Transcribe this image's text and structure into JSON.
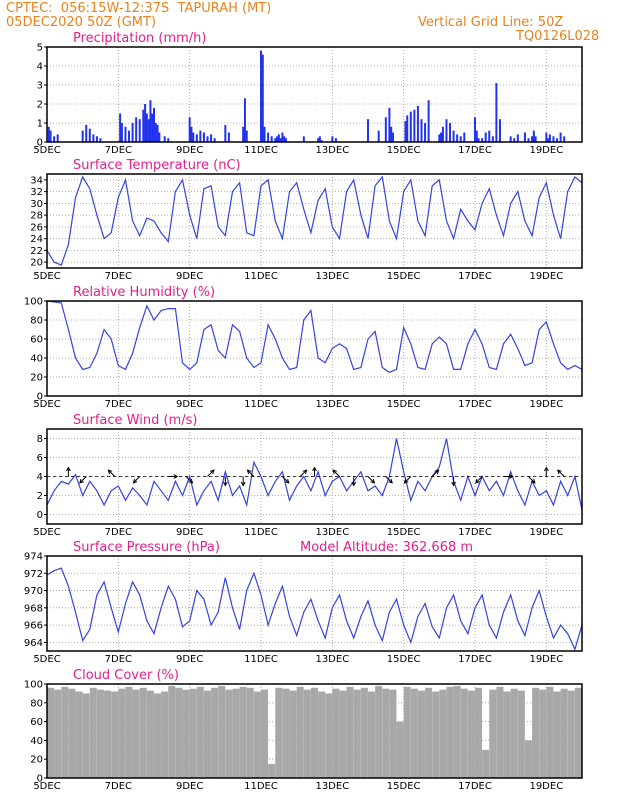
{
  "header": {
    "line1": "CPTEC:  056:15W-12:37S  TAPURAH (MT)",
    "line2": "05DEC2020 50Z (GMT)",
    "grid_note": "Vertical Grid Line: 50Z",
    "run_id": "TQ0126L028",
    "model_altitude": "Model Altitude: 362.668 m"
  },
  "colors": {
    "header": "#e8821e",
    "title": "#e0208c",
    "line": "#3344dd",
    "bar": "#2233ee",
    "cloud": "#a8a8a8",
    "grid": "#999999"
  },
  "x_axis": {
    "unit": "days from 05DEC2020",
    "range": [
      0,
      15
    ],
    "ticks": [
      0,
      2,
      4,
      6,
      8,
      10,
      12,
      14
    ],
    "tick_labels": [
      "5DEC",
      "7DEC",
      "9DEC",
      "11DEC",
      "13DEC",
      "15DEC",
      "17DEC",
      "19DEC"
    ]
  },
  "chart_data": [
    {
      "type": "bar",
      "title": "Precipitation (mm/h)",
      "ylim": [
        0,
        5
      ],
      "yticks": [
        0,
        1,
        2,
        3,
        4,
        5
      ],
      "x": [
        0.05,
        0.1,
        0.2,
        0.3,
        1.0,
        1.1,
        1.2,
        1.3,
        1.4,
        1.5,
        2.05,
        2.1,
        2.2,
        2.3,
        2.4,
        2.5,
        2.6,
        2.7,
        2.75,
        2.8,
        2.85,
        2.9,
        2.95,
        3.0,
        3.05,
        3.1,
        3.15,
        3.3,
        3.4,
        4.0,
        4.05,
        4.1,
        4.2,
        4.3,
        4.4,
        4.5,
        4.6,
        4.7,
        5.0,
        5.1,
        5.5,
        5.55,
        5.6,
        6.0,
        6.05,
        6.1,
        6.2,
        6.3,
        6.4,
        6.45,
        6.5,
        6.55,
        6.6,
        6.65,
        6.7,
        7.2,
        7.6,
        7.65,
        7.7,
        8.0,
        8.1,
        9.0,
        9.3,
        9.5,
        9.6,
        9.65,
        9.7,
        10.05,
        10.1,
        10.2,
        10.3,
        10.4,
        10.5,
        10.6,
        10.7,
        11.0,
        11.05,
        11.1,
        11.2,
        11.3,
        11.4,
        11.5,
        11.6,
        11.7,
        12.0,
        12.05,
        12.1,
        12.2,
        12.3,
        12.4,
        12.5,
        12.6,
        12.7,
        13.0,
        13.1,
        13.2,
        13.4,
        13.5,
        13.6,
        13.65,
        13.7,
        14.0,
        14.05,
        14.1,
        14.2,
        14.3,
        14.4,
        14.5
      ],
      "values": [
        0.8,
        0.6,
        0.3,
        0.4,
        0.6,
        0.9,
        0.7,
        0.4,
        0.3,
        0.2,
        1.5,
        1.0,
        0.8,
        0.6,
        1.0,
        1.3,
        1.2,
        1.7,
        2.0,
        1.5,
        1.2,
        2.2,
        1.5,
        1.8,
        1.0,
        0.9,
        0.5,
        0.3,
        0.2,
        1.3,
        0.8,
        0.5,
        0.4,
        0.6,
        0.5,
        0.3,
        0.4,
        0.2,
        0.9,
        0.5,
        0.8,
        2.3,
        0.6,
        4.8,
        4.6,
        0.8,
        0.5,
        0.3,
        0.2,
        0.3,
        0.4,
        0.2,
        0.5,
        0.3,
        0.2,
        0.3,
        0.2,
        0.3,
        0.1,
        0.3,
        0.2,
        1.2,
        0.6,
        1.3,
        1.8,
        0.8,
        0.5,
        1.1,
        1.4,
        1.6,
        1.7,
        1.9,
        1.2,
        1.0,
        2.2,
        0.4,
        0.5,
        0.8,
        1.2,
        1.0,
        0.6,
        0.4,
        0.3,
        0.5,
        1.3,
        0.6,
        0.2,
        0.2,
        0.5,
        0.6,
        0.3,
        3.1,
        1.2,
        0.3,
        0.2,
        0.4,
        0.5,
        0.2,
        0.3,
        0.6,
        0.3,
        0.5,
        0.2,
        0.4,
        0.3,
        0.2,
        0.5,
        0.3
      ]
    },
    {
      "type": "line",
      "title": "Surface Temperature (nC)",
      "ylim": [
        19,
        35
      ],
      "yticks": [
        20,
        22,
        24,
        26,
        28,
        30,
        32,
        34
      ],
      "x": [
        0,
        0.2,
        0.4,
        0.6,
        0.8,
        1.0,
        1.2,
        1.4,
        1.6,
        1.8,
        2.0,
        2.2,
        2.4,
        2.6,
        2.8,
        3.0,
        3.2,
        3.4,
        3.6,
        3.8,
        4.0,
        4.2,
        4.4,
        4.6,
        4.8,
        5.0,
        5.2,
        5.4,
        5.6,
        5.8,
        6.0,
        6.2,
        6.4,
        6.6,
        6.8,
        7.0,
        7.2,
        7.4,
        7.6,
        7.8,
        8.0,
        8.2,
        8.4,
        8.6,
        8.8,
        9.0,
        9.2,
        9.4,
        9.6,
        9.8,
        10.0,
        10.2,
        10.4,
        10.6,
        10.8,
        11.0,
        11.2,
        11.4,
        11.6,
        11.8,
        12.0,
        12.2,
        12.4,
        12.6,
        12.8,
        13.0,
        13.2,
        13.4,
        13.6,
        13.8,
        14.0,
        14.2,
        14.4,
        14.6,
        14.8,
        15.0
      ],
      "values": [
        22.0,
        20.0,
        19.5,
        23.0,
        31.0,
        34.5,
        32.5,
        28.0,
        24.0,
        25.0,
        31.0,
        34.0,
        27.0,
        24.5,
        27.5,
        27.0,
        25.0,
        23.5,
        32.0,
        34.0,
        28.0,
        24.0,
        32.5,
        33.0,
        26.0,
        24.5,
        32.0,
        33.5,
        25.0,
        24.5,
        33.0,
        34.0,
        27.0,
        24.0,
        32.0,
        33.5,
        29.0,
        25.0,
        30.5,
        32.5,
        26.0,
        24.0,
        32.0,
        34.0,
        28.0,
        24.0,
        33.0,
        34.5,
        27.0,
        24.0,
        32.0,
        34.0,
        27.0,
        24.5,
        33.0,
        34.0,
        27.0,
        24.0,
        29.0,
        27.0,
        25.5,
        30.0,
        32.5,
        28.0,
        24.5,
        30.0,
        32.0,
        27.0,
        24.5,
        31.0,
        33.5,
        28.0,
        24.0,
        32.0,
        34.5,
        33.5
      ]
    },
    {
      "type": "line",
      "title": "Relative Humidity (%)",
      "ylim": [
        0,
        100
      ],
      "yticks": [
        0,
        20,
        40,
        60,
        80,
        100
      ],
      "x": [
        0,
        0.2,
        0.4,
        0.6,
        0.8,
        1.0,
        1.2,
        1.4,
        1.6,
        1.8,
        2.0,
        2.2,
        2.4,
        2.6,
        2.8,
        3.0,
        3.2,
        3.4,
        3.6,
        3.8,
        4.0,
        4.2,
        4.4,
        4.6,
        4.8,
        5.0,
        5.2,
        5.4,
        5.6,
        5.8,
        6.0,
        6.2,
        6.4,
        6.6,
        6.8,
        7.0,
        7.2,
        7.4,
        7.6,
        7.8,
        8.0,
        8.2,
        8.4,
        8.6,
        8.8,
        9.0,
        9.2,
        9.4,
        9.6,
        9.8,
        10.0,
        10.2,
        10.4,
        10.6,
        10.8,
        11.0,
        11.2,
        11.4,
        11.6,
        11.8,
        12.0,
        12.2,
        12.4,
        12.6,
        12.8,
        13.0,
        13.2,
        13.4,
        13.6,
        13.8,
        14.0,
        14.2,
        14.4,
        14.6,
        14.8,
        15.0
      ],
      "values": [
        100,
        99,
        98,
        70,
        40,
        28,
        30,
        45,
        70,
        60,
        32,
        28,
        45,
        72,
        95,
        80,
        90,
        92,
        92,
        35,
        28,
        35,
        70,
        75,
        48,
        40,
        75,
        68,
        40,
        30,
        35,
        75,
        60,
        40,
        28,
        30,
        80,
        90,
        40,
        35,
        50,
        55,
        50,
        28,
        30,
        60,
        68,
        30,
        25,
        28,
        72,
        55,
        30,
        28,
        55,
        62,
        55,
        28,
        28,
        55,
        70,
        55,
        30,
        28,
        55,
        65,
        50,
        32,
        35,
        70,
        78,
        55,
        35,
        28,
        32,
        28
      ]
    },
    {
      "type": "line",
      "title": "Surface Wind (m/s)",
      "ylim": [
        -1,
        9
      ],
      "yticks": [
        0,
        2,
        4,
        6,
        8
      ],
      "x": [
        0,
        0.2,
        0.4,
        0.6,
        0.8,
        1.0,
        1.2,
        1.4,
        1.6,
        1.8,
        2.0,
        2.2,
        2.4,
        2.6,
        2.8,
        3.0,
        3.2,
        3.4,
        3.6,
        3.8,
        4.0,
        4.2,
        4.4,
        4.6,
        4.8,
        5.0,
        5.2,
        5.4,
        5.6,
        5.8,
        6.0,
        6.2,
        6.4,
        6.6,
        6.8,
        7.0,
        7.2,
        7.4,
        7.6,
        7.8,
        8.0,
        8.2,
        8.4,
        8.6,
        8.8,
        9.0,
        9.2,
        9.4,
        9.6,
        9.8,
        10.0,
        10.2,
        10.4,
        10.6,
        10.8,
        11.0,
        11.2,
        11.4,
        11.6,
        11.8,
        12.0,
        12.2,
        12.4,
        12.6,
        12.8,
        13.0,
        13.2,
        13.4,
        13.6,
        13.8,
        14.0,
        14.2,
        14.4,
        14.6,
        14.8,
        15.0
      ],
      "values": [
        1.0,
        2.5,
        3.5,
        3.2,
        4.2,
        2.0,
        3.5,
        2.5,
        1.0,
        2.5,
        3.0,
        1.5,
        2.8,
        2.0,
        1.0,
        3.5,
        2.5,
        1.5,
        3.5,
        2.0,
        4.0,
        1.0,
        2.5,
        3.5,
        1.5,
        4.5,
        2.0,
        3.0,
        1.0,
        5.5,
        4.0,
        2.0,
        3.5,
        4.5,
        1.5,
        3.0,
        4.0,
        2.5,
        4.5,
        2.0,
        3.5,
        4.0,
        2.5,
        3.5,
        4.5,
        2.5,
        3.0,
        2.0,
        4.0,
        8.0,
        4.5,
        1.5,
        3.5,
        2.5,
        4.0,
        5.0,
        8.0,
        3.5,
        1.5,
        4.0,
        2.0,
        4.0,
        2.5,
        3.5,
        2.0,
        4.5,
        2.5,
        1.0,
        3.5,
        2.0,
        2.5,
        1.0,
        3.5,
        2.0,
        4.0,
        0.5
      ]
    },
    {
      "type": "line",
      "title": "Surface Pressure (hPa)",
      "ylim": [
        963,
        974
      ],
      "yticks": [
        964,
        966,
        968,
        970,
        972,
        974
      ],
      "x": [
        0,
        0.2,
        0.4,
        0.6,
        0.8,
        1.0,
        1.2,
        1.4,
        1.6,
        1.8,
        2.0,
        2.2,
        2.4,
        2.6,
        2.8,
        3.0,
        3.2,
        3.4,
        3.6,
        3.8,
        4.0,
        4.2,
        4.4,
        4.6,
        4.8,
        5.0,
        5.2,
        5.4,
        5.6,
        5.8,
        6.0,
        6.2,
        6.4,
        6.6,
        6.8,
        7.0,
        7.2,
        7.4,
        7.6,
        7.8,
        8.0,
        8.2,
        8.4,
        8.6,
        8.8,
        9.0,
        9.2,
        9.4,
        9.6,
        9.8,
        10.0,
        10.2,
        10.4,
        10.6,
        10.8,
        11.0,
        11.2,
        11.4,
        11.6,
        11.8,
        12.0,
        12.2,
        12.4,
        12.6,
        12.8,
        13.0,
        13.2,
        13.4,
        13.6,
        13.8,
        14.0,
        14.2,
        14.4,
        14.6,
        14.8,
        15.0
      ],
      "values": [
        971.8,
        972.3,
        972.6,
        970.5,
        967.5,
        964.2,
        965.5,
        969.5,
        971.0,
        968.0,
        965.2,
        968.5,
        971.0,
        969.5,
        966.5,
        965.0,
        968.0,
        970.5,
        969.0,
        965.8,
        966.5,
        970.0,
        969.0,
        966.0,
        967.5,
        971.5,
        968.0,
        965.5,
        970.0,
        972.0,
        969.5,
        966.0,
        968.5,
        970.5,
        967.0,
        964.8,
        967.5,
        969.0,
        966.5,
        964.5,
        968.0,
        969.5,
        966.5,
        964.5,
        967.0,
        968.8,
        966.0,
        964.2,
        967.5,
        969.0,
        966.0,
        964.0,
        967.0,
        968.5,
        965.8,
        964.5,
        968.0,
        969.5,
        966.5,
        965.0,
        968.0,
        969.5,
        966.0,
        964.5,
        967.5,
        969.5,
        966.5,
        964.8,
        968.0,
        970.0,
        967.0,
        964.5,
        966.0,
        965.0,
        963.2,
        966.0
      ]
    },
    {
      "type": "area",
      "title": "Cloud Cover (%)",
      "ylim": [
        0,
        100
      ],
      "yticks": [
        0,
        20,
        40,
        60,
        80,
        100
      ],
      "x": [
        0,
        0.2,
        0.4,
        0.6,
        0.8,
        1.0,
        1.2,
        1.4,
        1.6,
        1.8,
        2.0,
        2.2,
        2.4,
        2.6,
        2.8,
        3.0,
        3.2,
        3.4,
        3.6,
        3.8,
        4.0,
        4.2,
        4.4,
        4.6,
        4.8,
        5.0,
        5.2,
        5.4,
        5.6,
        5.8,
        6.0,
        6.2,
        6.4,
        6.6,
        6.8,
        7.0,
        7.2,
        7.4,
        7.6,
        7.8,
        8.0,
        8.2,
        8.4,
        8.6,
        8.8,
        9.0,
        9.2,
        9.4,
        9.6,
        9.8,
        10.0,
        10.2,
        10.4,
        10.6,
        10.8,
        11.0,
        11.2,
        11.4,
        11.6,
        11.8,
        12.0,
        12.2,
        12.4,
        12.6,
        12.8,
        13.0,
        13.2,
        13.4,
        13.6,
        13.8,
        14.0,
        14.2,
        14.4,
        14.6,
        14.8,
        15.0
      ],
      "values": [
        96,
        94,
        97,
        95,
        92,
        90,
        96,
        94,
        93,
        92,
        95,
        97,
        94,
        96,
        93,
        90,
        92,
        98,
        96,
        94,
        95,
        97,
        93,
        96,
        98,
        94,
        95,
        97,
        96,
        92,
        94,
        15,
        96,
        95,
        93,
        97,
        94,
        96,
        92,
        90,
        95,
        93,
        97,
        94,
        96,
        92,
        98,
        95,
        94,
        60,
        97,
        95,
        93,
        96,
        92,
        94,
        97,
        98,
        95,
        93,
        96,
        30,
        94,
        97,
        92,
        95,
        93,
        40,
        96,
        94,
        97,
        92,
        95,
        93,
        96,
        84
      ]
    }
  ],
  "wind_barbs": {
    "level": 4,
    "x": [
      0.6,
      1.1,
      1.9,
      2.6,
      3.4,
      3.9,
      4.5,
      5.0,
      5.5,
      5.8,
      6.6,
      7.1,
      7.5,
      8.2,
      8.6,
      9.0,
      9.5,
      10.2,
      10.8,
      11.4,
      12.2,
      12.8,
      13.5,
      14.0,
      14.5
    ],
    "u": [
      0,
      -1,
      -1,
      -1,
      1,
      1,
      1,
      0,
      0,
      -1,
      1,
      1,
      0,
      -1,
      0,
      1,
      1,
      -1,
      1,
      0,
      -1,
      1,
      1,
      0,
      -1
    ],
    "v": [
      1,
      -1,
      1,
      -1,
      0,
      -1,
      1,
      -1,
      -1,
      1,
      -1,
      1,
      1,
      1,
      -1,
      -1,
      -1,
      -1,
      1,
      -1,
      -1,
      0,
      -1,
      1,
      1
    ]
  }
}
